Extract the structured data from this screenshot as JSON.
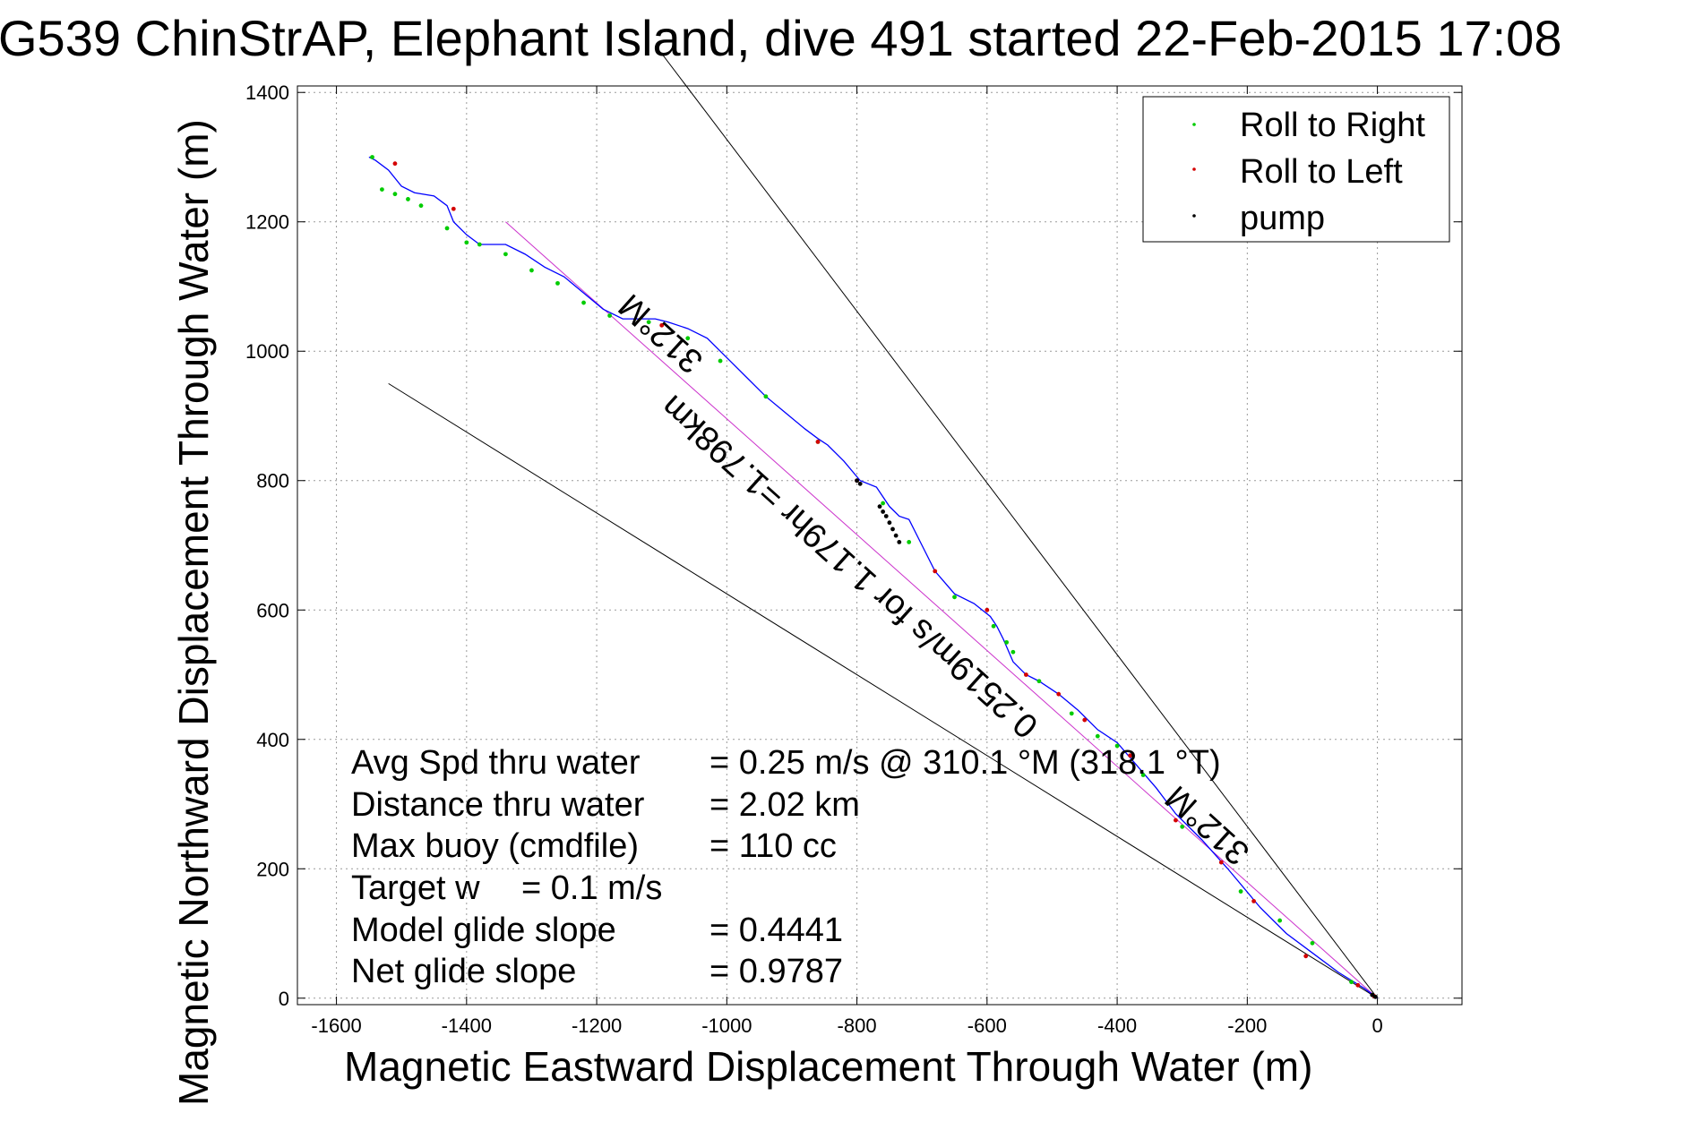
{
  "chart_data": {
    "type": "line",
    "title": "G539 ChinStrAP, Elephant Island, dive 491 started 22-Feb-2015 17:08",
    "xlabel": "Magnetic Eastward Displacement Through Water (m)",
    "ylabel": "Magnetic Northward Displacement Through Water (m)",
    "xlim": [
      -1660,
      130
    ],
    "ylim": [
      -10,
      1410
    ],
    "xticks": [
      -1600,
      -1400,
      -1200,
      -1000,
      -800,
      -600,
      -400,
      -200,
      0
    ],
    "yticks": [
      0,
      200,
      400,
      600,
      800,
      1000,
      1200,
      1400
    ],
    "grid": true,
    "legend_position": "top-right",
    "legend": [
      {
        "label": "Roll to Right",
        "color": "#00cc00"
      },
      {
        "label": "Roll to Left",
        "color": "#d40000"
      },
      {
        "label": "pump",
        "color": "#000000"
      }
    ],
    "series": [
      {
        "name": "track",
        "color": "#0000ff",
        "x": [
          0,
          -20,
          -60,
          -100,
          -140,
          -180,
          -230,
          -270,
          -310,
          -340,
          -370,
          -400,
          -430,
          -460,
          -490,
          -520,
          -540,
          -560,
          -575,
          -585,
          -595,
          -620,
          -650,
          -680,
          -700,
          -720,
          -735,
          -750,
          -770,
          -795,
          -820,
          -845,
          -860,
          -880,
          -910,
          -940,
          -970,
          -1000,
          -1030,
          -1060,
          -1090,
          -1110,
          -1130,
          -1160,
          -1190,
          -1220,
          -1250,
          -1280,
          -1310,
          -1340,
          -1360,
          -1380,
          -1400,
          -1420,
          -1430,
          -1450,
          -1480,
          -1500,
          -1520,
          -1540,
          -1550
        ],
        "y": [
          0,
          15,
          40,
          70,
          100,
          140,
          200,
          245,
          285,
          325,
          360,
          395,
          415,
          445,
          470,
          490,
          500,
          520,
          555,
          575,
          590,
          610,
          625,
          660,
          700,
          740,
          745,
          760,
          790,
          800,
          830,
          855,
          865,
          880,
          905,
          930,
          960,
          990,
          1020,
          1035,
          1045,
          1050,
          1050,
          1050,
          1065,
          1090,
          1115,
          1130,
          1150,
          1165,
          1165,
          1165,
          1180,
          1200,
          1225,
          1240,
          1245,
          1255,
          1280,
          1295,
          1300
        ]
      },
      {
        "name": "Roll to Right",
        "color": "#00cc00",
        "x": [
          -40,
          -100,
          -150,
          -210,
          -300,
          -360,
          -400,
          -430,
          -470,
          -520,
          -560,
          -570,
          -590,
          -650,
          -720,
          -760,
          -860,
          -940,
          -1010,
          -1060,
          -1120,
          -1180,
          -1220,
          -1260,
          -1300,
          -1340,
          -1380,
          -1400,
          -1430,
          -1470,
          -1490,
          -1510,
          -1530,
          -1545
        ],
        "y": [
          25,
          85,
          120,
          165,
          265,
          345,
          390,
          405,
          440,
          490,
          535,
          550,
          575,
          620,
          705,
          765,
          860,
          930,
          985,
          1020,
          1045,
          1055,
          1075,
          1105,
          1125,
          1150,
          1165,
          1168,
          1190,
          1225,
          1235,
          1243,
          1250,
          1300
        ]
      },
      {
        "name": "Roll to Left",
        "color": "#d40000",
        "x": [
          -5,
          -30,
          -110,
          -190,
          -240,
          -310,
          -380,
          -450,
          -490,
          -540,
          -600,
          -680,
          -800,
          -860,
          -1100,
          -1420,
          -1510
        ],
        "y": [
          3,
          20,
          65,
          150,
          210,
          275,
          375,
          430,
          470,
          500,
          600,
          660,
          800,
          860,
          1040,
          1220,
          1290
        ]
      },
      {
        "name": "pump",
        "color": "#000000",
        "x": [
          -3,
          -8,
          -735,
          -740,
          -745,
          -750,
          -755,
          -760,
          -765,
          -795,
          -800
        ],
        "y": [
          2,
          5,
          705,
          715,
          725,
          735,
          745,
          752,
          760,
          795,
          800
        ]
      }
    ],
    "reference_lines": [
      {
        "x": [
          0,
          -1100
        ],
        "y": [
          0,
          1460
        ]
      },
      {
        "x": [
          0,
          -1520
        ],
        "y": [
          0,
          950
        ]
      },
      {
        "x": [
          0,
          -1340
        ],
        "y": [
          0,
          1200
        ]
      }
    ],
    "annotations": [
      {
        "text": "312°M",
        "x": -1090,
        "y": 1040,
        "angle": 42
      },
      {
        "text": "0.2519m/s for 1.179hr =1.798km",
        "x": -800,
        "y": 680,
        "angle": 42
      },
      {
        "text": "312°M",
        "x": -250,
        "y": 280,
        "angle": 42
      }
    ],
    "stats": [
      {
        "label": "Avg Spd thru water",
        "value": "=  0.25 m/s @ 310.1 °M (318.1 °T)"
      },
      {
        "label": "Distance thru water",
        "value": "=  2.02 km"
      },
      {
        "label": "Max buoy (cmdfile)",
        "value": "= 110 cc"
      },
      {
        "label": "Target w",
        "value": "= 0.1 m/s"
      },
      {
        "label": "Model glide slope",
        "value": "= 0.4441"
      },
      {
        "label": "Net glide slope",
        "value": "= 0.9787"
      }
    ]
  }
}
